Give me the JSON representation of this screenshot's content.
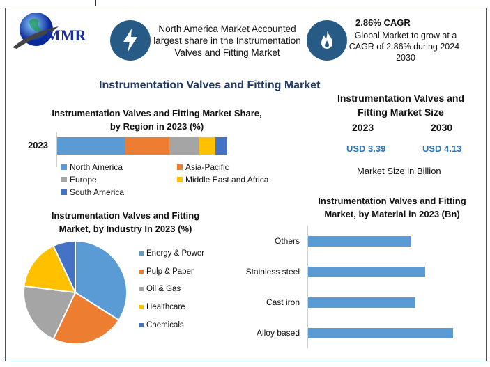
{
  "logo": {
    "text": "MMR"
  },
  "highlights": [
    {
      "icon": "lightning-icon",
      "text": "North America Market Accounted largest share in the Instrumentation Valves and Fitting Market"
    },
    {
      "icon": "flame-icon",
      "title": "2.86% CAGR",
      "text": "Global Market to grow at a CAGR of 2.86% during 2024-2030"
    }
  ],
  "main_title": "Instrumentation Valves and Fitting Market",
  "market_size": {
    "title": "Instrumentation Valves and Fitting Market Size",
    "years": [
      "2023",
      "2030"
    ],
    "values": [
      "USD 3.39",
      "USD 4.13"
    ],
    "note": "Market Size in Billion"
  },
  "colors": {
    "accent": "#275b85",
    "title": "#1f3864",
    "value": "#2e75b6"
  },
  "chart_data": [
    {
      "type": "bar",
      "orientation": "horizontal-stacked",
      "title": "Instrumentation Valves and Fitting Market Share, by Region in 2023 (%)",
      "categories": [
        "2023"
      ],
      "series": [
        {
          "name": "North America",
          "values": [
            40
          ],
          "color": "#5b9bd5"
        },
        {
          "name": "Asia-Pacific",
          "values": [
            26
          ],
          "color": "#ed7d31"
        },
        {
          "name": "Europe",
          "values": [
            17
          ],
          "color": "#a5a5a5"
        },
        {
          "name": "Middle East and Africa",
          "values": [
            10
          ],
          "color": "#ffc000"
        },
        {
          "name": "South America",
          "values": [
            7
          ],
          "color": "#4472c4"
        }
      ],
      "legend": "bottom"
    },
    {
      "type": "pie",
      "title": "Instrumentation Valves and Fitting Market, by Industry In 2023 (%)",
      "labels": [
        "Energy & Power",
        "Pulp & Paper",
        "Oil & Gas",
        "Healthcare",
        "Chemicals"
      ],
      "values": [
        34,
        23,
        20,
        16,
        7
      ],
      "colors": [
        "#5b9bd5",
        "#ed7d31",
        "#a5a5a5",
        "#ffc000",
        "#4472c4"
      ],
      "legend": "right"
    },
    {
      "type": "bar",
      "orientation": "horizontal",
      "title": "Instrumentation Valves and Fitting Market, by Material in 2023 (Bn)",
      "categories": [
        "Others",
        "Stainless steel",
        "Cast iron",
        "Alloy based"
      ],
      "values": [
        0.74,
        0.84,
        0.77,
        1.04
      ],
      "color": "#5b9bd5",
      "xlim": [
        0,
        1.2
      ]
    }
  ]
}
